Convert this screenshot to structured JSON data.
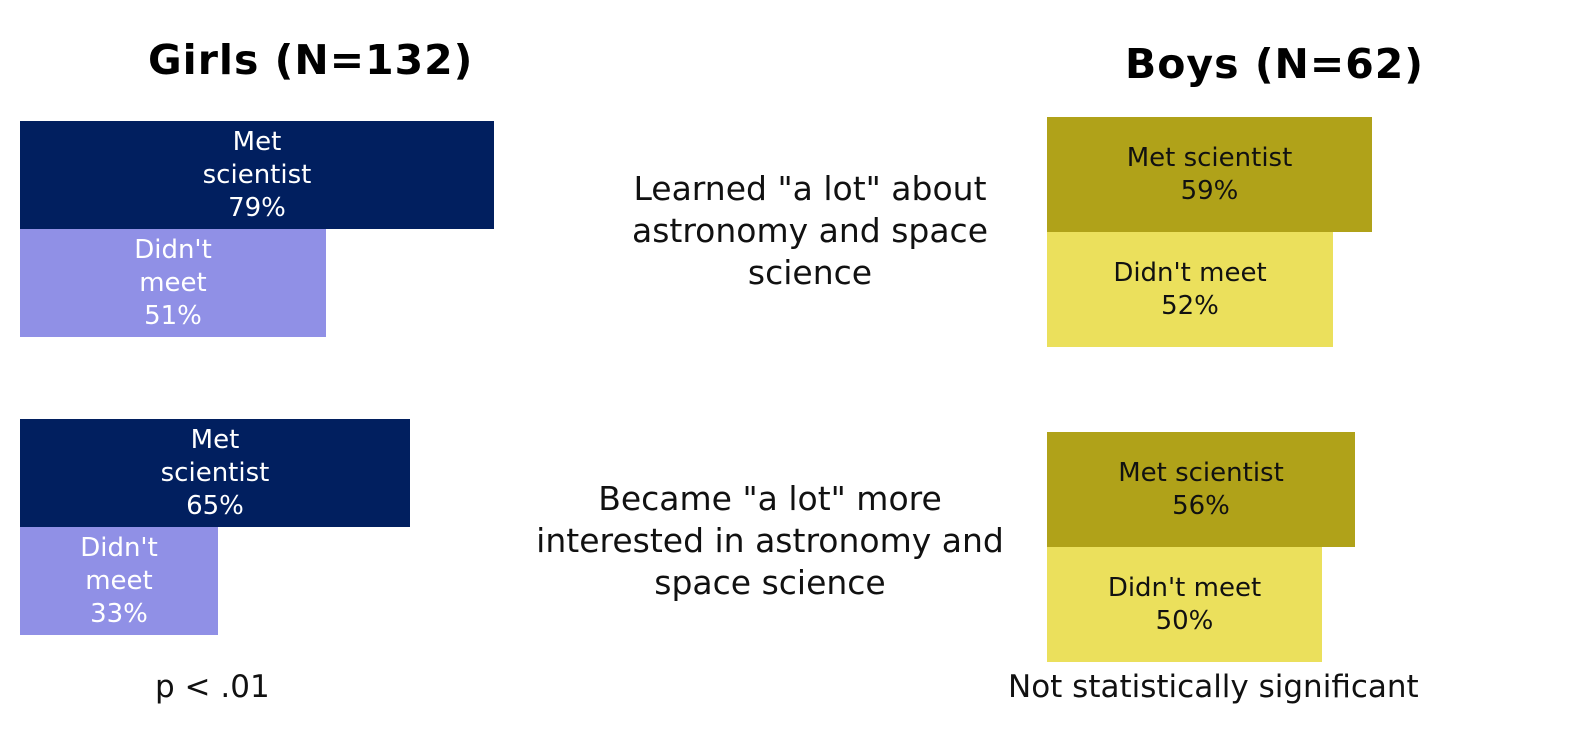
{
  "chart_data": [
    {
      "type": "bar",
      "title": "Girls (N=132)",
      "unit": "%",
      "categories": [
        "Learned \"a lot\" about astronomy and space science",
        "Became \"a lot\" more interested in astronomy and space science"
      ],
      "series": [
        {
          "name": "Met scientist",
          "values": [
            79,
            65
          ]
        },
        {
          "name": "Didn't meet",
          "values": [
            51,
            33
          ]
        }
      ],
      "bar_labels": [
        [
          "Met\nscientist\n79%",
          "Didn't\nmeet\n51%"
        ],
        [
          "Met\nscientist\n65%",
          "Didn't\nmeet\n33%"
        ]
      ],
      "note": "p < .01",
      "colors": {
        "Met scientist": "#011f5f",
        "Didn't meet": "#9090e6"
      }
    },
    {
      "type": "bar",
      "title": "Boys (N=62)",
      "unit": "%",
      "categories": [
        "Learned \"a lot\" about astronomy and space science",
        "Became \"a lot\" more interested in astronomy and space science"
      ],
      "series": [
        {
          "name": "Met scientist",
          "values": [
            59,
            56
          ]
        },
        {
          "name": "Didn't meet",
          "values": [
            52,
            50
          ]
        }
      ],
      "bar_labels": [
        [
          "Met scientist\n59%",
          "Didn't meet\n52%"
        ],
        [
          "Met scientist\n56%",
          "Didn't meet\n50%"
        ]
      ],
      "note": "Not statistically significant",
      "colors": {
        "Met scientist": "#b0a219",
        "Didn't meet": "#ebe05c"
      }
    }
  ],
  "questions": [
    "Learned \"a lot\" about\nastronomy and space\nscience",
    "Became \"a lot\" more\ninterested in astronomy and\nspace science"
  ]
}
